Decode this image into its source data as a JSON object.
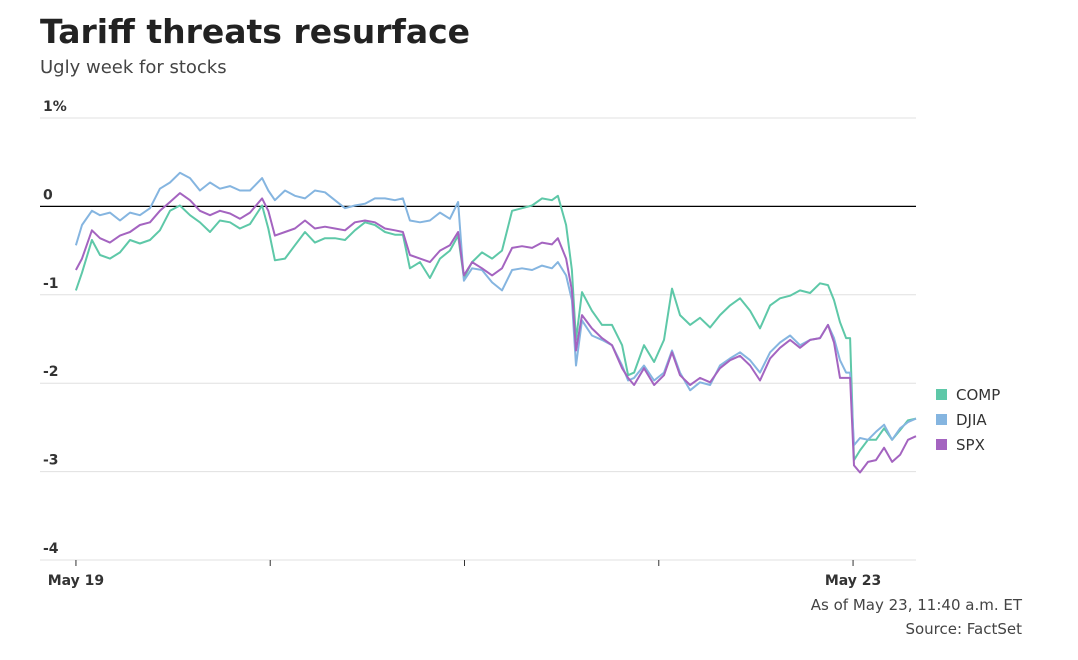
{
  "chart_data": {
    "type": "line",
    "title": "Tariff threats resurface",
    "subtitle": "Ugly week for stocks",
    "note": "As of May 23, 11:40 a.m. ET",
    "source": "Source: FactSet",
    "xlim": [
      -0.185,
      4.324
    ],
    "xticks": [
      {
        "value": 0,
        "label": "May 19"
      },
      {
        "value": 1,
        "label": null
      },
      {
        "value": 2,
        "label": null
      },
      {
        "value": 3,
        "label": null
      },
      {
        "value": 4,
        "label": "May 23"
      }
    ],
    "ylim": [
      -4,
      1
    ],
    "yticks": [
      {
        "value": 1,
        "label": "1%"
      },
      0,
      -1,
      -2,
      -3,
      -4
    ],
    "grid": true,
    "zero_line": true,
    "legend": "right",
    "x": [
      0,
      0.031,
      0.082,
      0.124,
      0.175,
      0.227,
      0.278,
      0.329,
      0.381,
      0.432,
      0.484,
      0.535,
      0.587,
      0.638,
      0.69,
      0.741,
      0.793,
      0.844,
      0.896,
      0.958,
      0.99,
      1.024,
      1.076,
      1.127,
      1.179,
      1.23,
      1.282,
      1.333,
      1.385,
      1.436,
      1.488,
      1.539,
      1.591,
      1.642,
      1.683,
      1.719,
      1.771,
      1.822,
      1.874,
      1.925,
      1.967,
      1.997,
      2.039,
      2.09,
      2.142,
      2.193,
      2.245,
      2.296,
      2.348,
      2.399,
      2.45,
      2.481,
      2.523,
      2.553,
      2.574,
      2.605,
      2.656,
      2.708,
      2.759,
      2.811,
      2.842,
      2.873,
      2.924,
      2.976,
      3.027,
      3.068,
      3.109,
      3.161,
      3.212,
      3.264,
      3.315,
      3.367,
      3.418,
      3.47,
      3.521,
      3.573,
      3.624,
      3.676,
      3.727,
      3.779,
      3.83,
      3.871,
      3.902,
      3.933,
      3.964,
      3.985,
      4.005,
      4.036,
      4.077,
      4.118,
      4.16,
      4.201,
      4.242,
      4.283,
      4.324
    ],
    "series": [
      {
        "name": "COMP",
        "color": "#5ec8a8",
        "values": [
          -0.95,
          -0.75,
          -0.38,
          -0.55,
          -0.59,
          -0.52,
          -0.38,
          -0.42,
          -0.38,
          -0.27,
          -0.05,
          0.01,
          -0.1,
          -0.18,
          -0.29,
          -0.16,
          -0.18,
          -0.25,
          -0.2,
          0.01,
          -0.25,
          -0.61,
          -0.59,
          -0.44,
          -0.29,
          -0.41,
          -0.36,
          -0.36,
          -0.38,
          -0.27,
          -0.18,
          -0.21,
          -0.29,
          -0.32,
          -0.32,
          -0.7,
          -0.63,
          -0.81,
          -0.59,
          -0.5,
          -0.33,
          -0.81,
          -0.63,
          -0.52,
          -0.59,
          -0.5,
          -0.05,
          -0.02,
          0.01,
          0.09,
          0.07,
          0.12,
          -0.21,
          -0.72,
          -1.51,
          -0.97,
          -1.18,
          -1.34,
          -1.34,
          -1.57,
          -1.91,
          -1.88,
          -1.57,
          -1.76,
          -1.51,
          -0.93,
          -1.23,
          -1.34,
          -1.26,
          -1.37,
          -1.23,
          -1.12,
          -1.04,
          -1.18,
          -1.38,
          -1.12,
          -1.04,
          -1.01,
          -0.95,
          -0.98,
          -0.87,
          -0.89,
          -1.06,
          -1.31,
          -1.49,
          -1.49,
          -2.87,
          -2.76,
          -2.64,
          -2.64,
          -2.51,
          -2.64,
          -2.53,
          -2.42,
          -2.4
        ]
      },
      {
        "name": "DJIA",
        "color": "#85b5e0",
        "values": [
          -0.44,
          -0.21,
          -0.05,
          -0.1,
          -0.07,
          -0.16,
          -0.07,
          -0.1,
          -0.02,
          0.2,
          0.27,
          0.38,
          0.32,
          0.18,
          0.27,
          0.2,
          0.23,
          0.18,
          0.18,
          0.32,
          0.18,
          0.07,
          0.18,
          0.12,
          0.09,
          0.18,
          0.16,
          0.07,
          -0.02,
          0.01,
          0.03,
          0.09,
          0.09,
          0.07,
          0.09,
          -0.16,
          -0.18,
          -0.16,
          -0.07,
          -0.14,
          0.05,
          -0.84,
          -0.7,
          -0.72,
          -0.86,
          -0.95,
          -0.72,
          -0.7,
          -0.72,
          -0.67,
          -0.7,
          -0.63,
          -0.78,
          -1.06,
          -1.8,
          -1.29,
          -1.46,
          -1.51,
          -1.57,
          -1.8,
          -1.97,
          -1.94,
          -1.8,
          -1.97,
          -1.88,
          -1.63,
          -1.88,
          -2.08,
          -1.99,
          -2.02,
          -1.8,
          -1.72,
          -1.65,
          -1.74,
          -1.88,
          -1.65,
          -1.54,
          -1.46,
          -1.57,
          -1.51,
          -1.49,
          -1.34,
          -1.49,
          -1.74,
          -1.88,
          -1.88,
          -2.7,
          -2.62,
          -2.64,
          -2.55,
          -2.47,
          -2.64,
          -2.51,
          -2.44,
          -2.4
        ]
      },
      {
        "name": "SPX",
        "color": "#a464c0",
        "values": [
          -0.72,
          -0.59,
          -0.27,
          -0.36,
          -0.41,
          -0.33,
          -0.29,
          -0.21,
          -0.18,
          -0.05,
          0.05,
          0.15,
          0.07,
          -0.05,
          -0.1,
          -0.05,
          -0.08,
          -0.14,
          -0.07,
          0.09,
          -0.05,
          -0.33,
          -0.29,
          -0.25,
          -0.16,
          -0.25,
          -0.23,
          -0.25,
          -0.27,
          -0.18,
          -0.16,
          -0.18,
          -0.25,
          -0.27,
          -0.29,
          -0.55,
          -0.59,
          -0.63,
          -0.5,
          -0.44,
          -0.29,
          -0.78,
          -0.63,
          -0.7,
          -0.78,
          -0.7,
          -0.47,
          -0.45,
          -0.47,
          -0.41,
          -0.43,
          -0.36,
          -0.59,
          -0.95,
          -1.63,
          -1.23,
          -1.38,
          -1.49,
          -1.57,
          -1.83,
          -1.94,
          -2.02,
          -1.83,
          -2.02,
          -1.91,
          -1.65,
          -1.91,
          -2.02,
          -1.94,
          -1.99,
          -1.83,
          -1.74,
          -1.69,
          -1.8,
          -1.97,
          -1.72,
          -1.6,
          -1.51,
          -1.6,
          -1.51,
          -1.49,
          -1.34,
          -1.54,
          -1.94,
          -1.94,
          -1.94,
          -2.93,
          -3.01,
          -2.89,
          -2.87,
          -2.73,
          -2.89,
          -2.81,
          -2.64,
          -2.6
        ]
      }
    ]
  }
}
